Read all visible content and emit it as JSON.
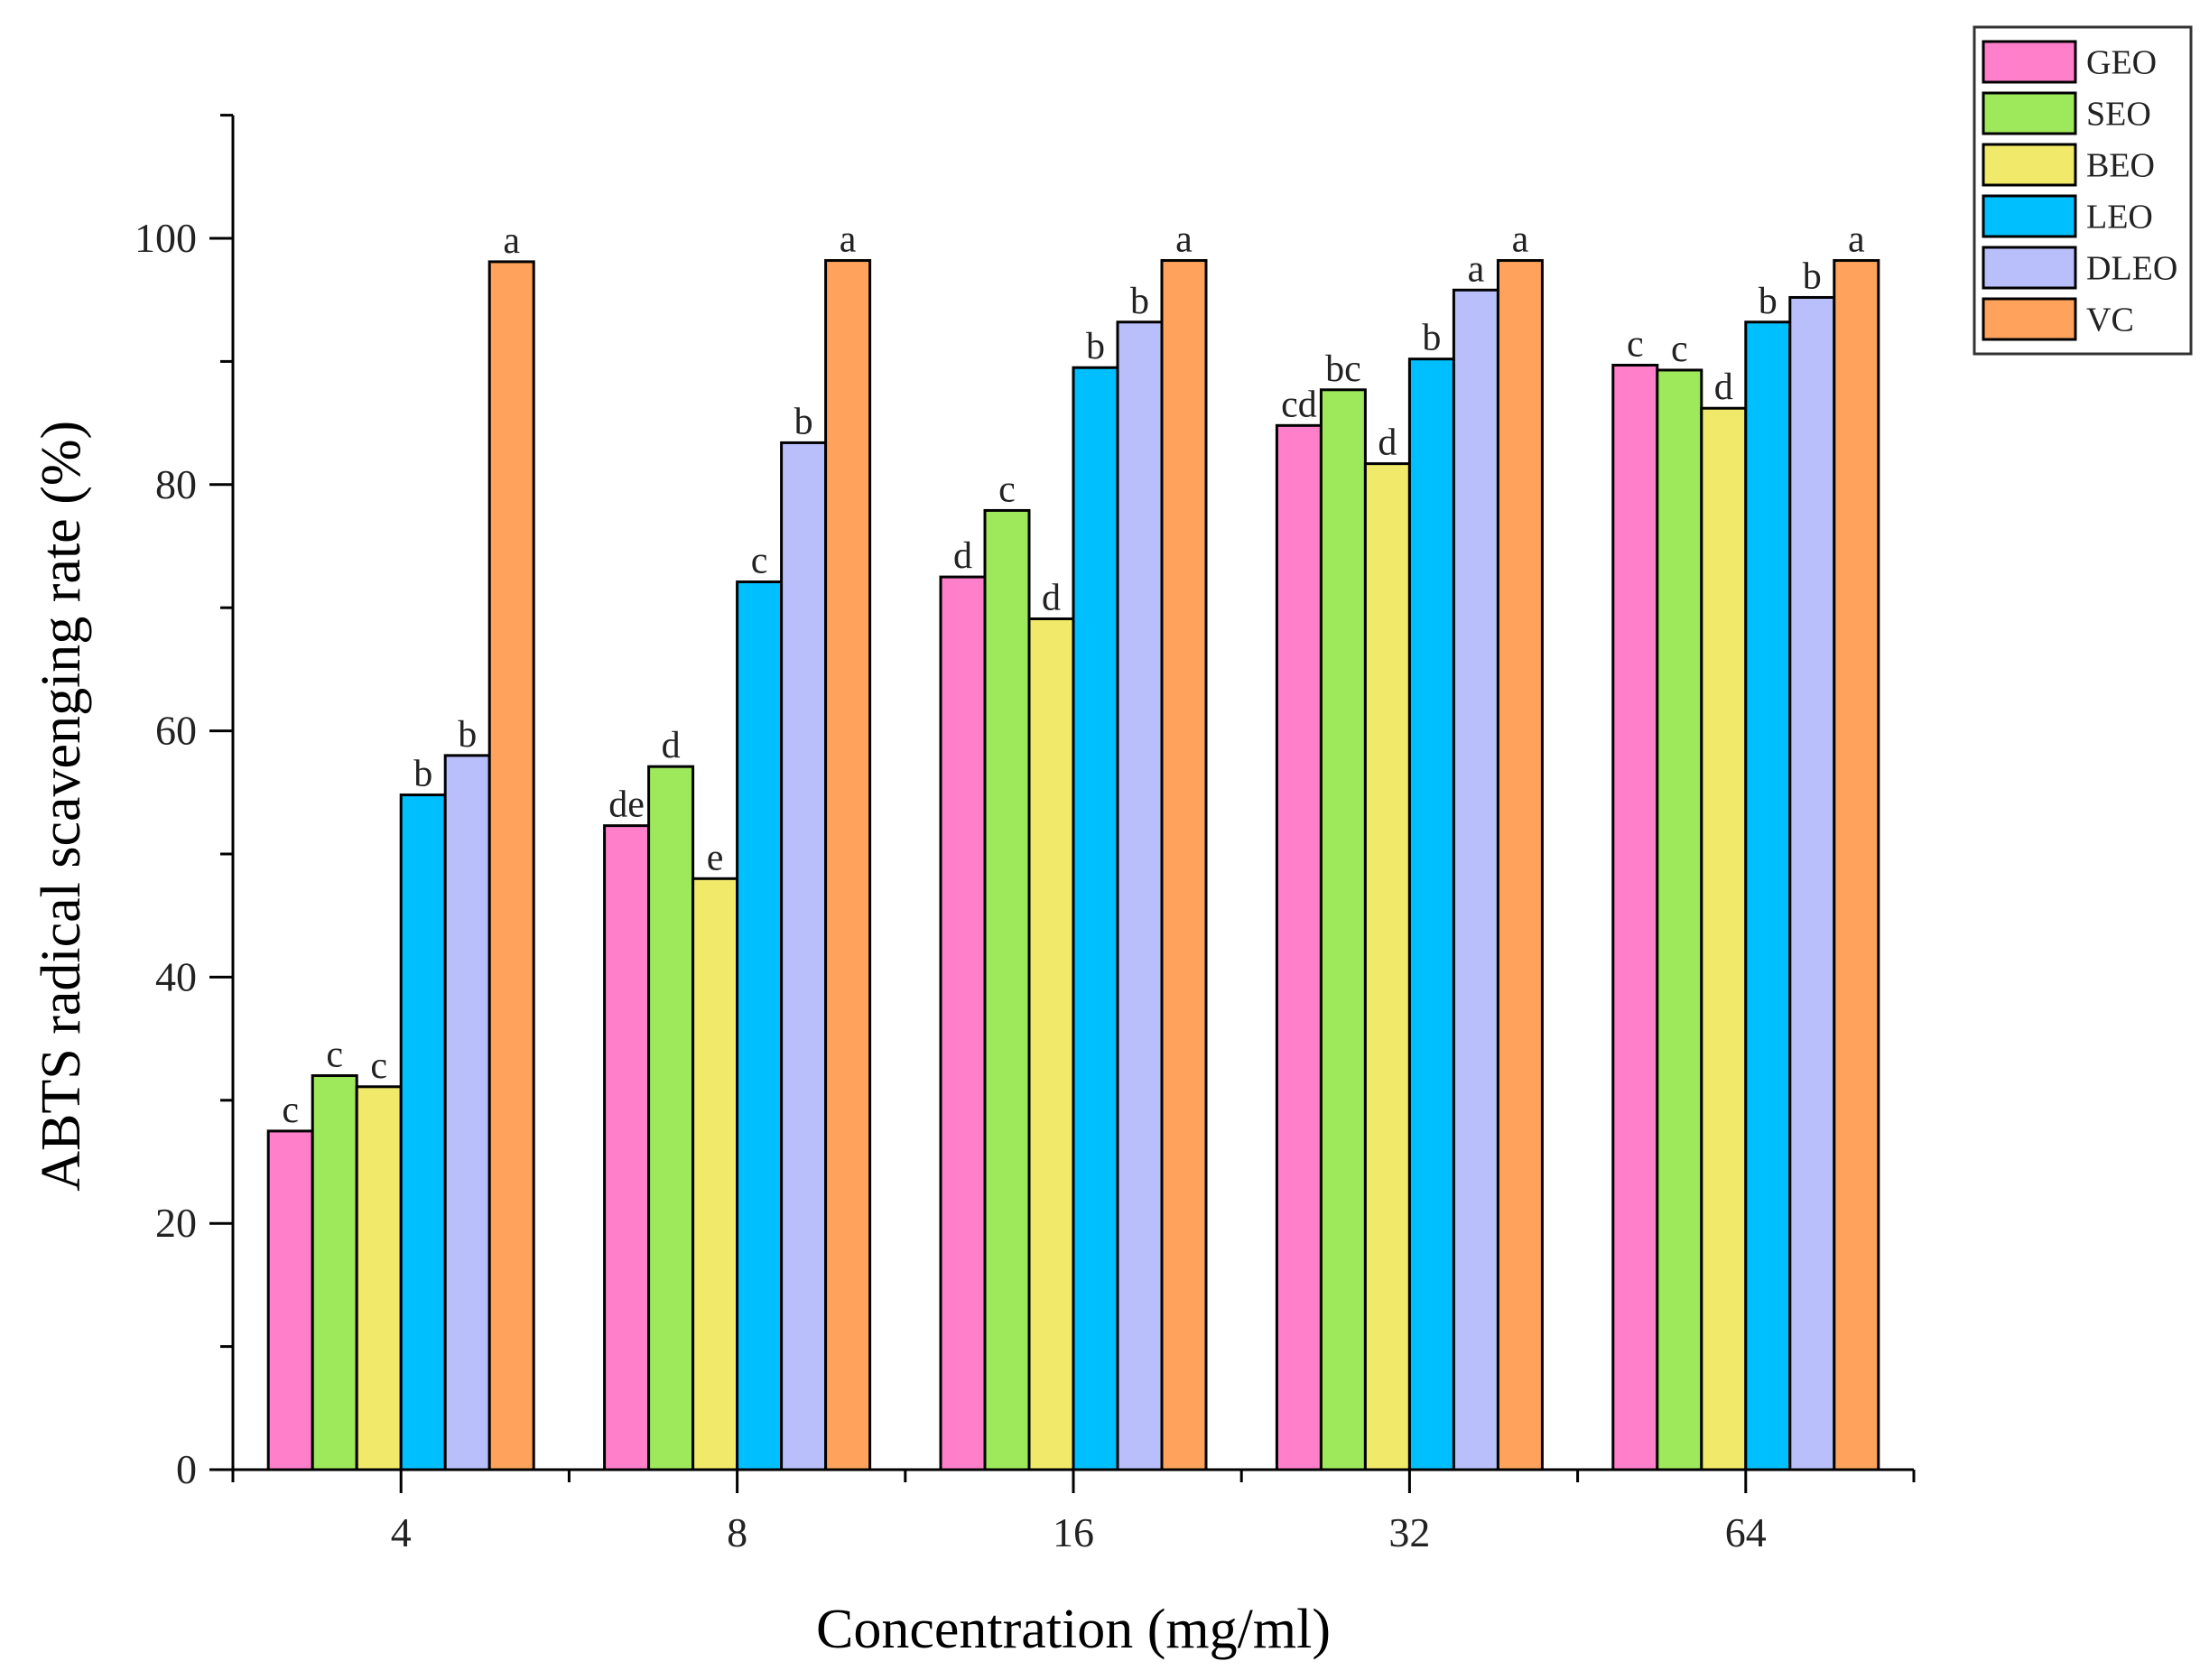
{
  "chart_data": {
    "type": "bar",
    "title": "",
    "xlabel": "Concentration (mg/ml)",
    "ylabel": "ABTS radical scavenging rate (%)",
    "ylim": [
      0,
      110
    ],
    "yticks": [
      0,
      20,
      40,
      60,
      80,
      100
    ],
    "categories": [
      "4",
      "8",
      "16",
      "32",
      "64"
    ],
    "legend_position": "top-right",
    "series": [
      {
        "name": "GEO",
        "color": "#ff7fcb",
        "values": [
          27.5,
          52.3,
          72.5,
          84.8,
          89.7
        ],
        "labels": [
          "c",
          "de",
          "d",
          "cd",
          "c"
        ]
      },
      {
        "name": "SEO",
        "color": "#9ee85b",
        "values": [
          32.0,
          57.1,
          77.9,
          87.7,
          89.3
        ],
        "labels": [
          "c",
          "d",
          "c",
          "bc",
          "c"
        ]
      },
      {
        "name": "BEO",
        "color": "#f0e96a",
        "values": [
          31.1,
          48.0,
          69.1,
          81.7,
          86.2
        ],
        "labels": [
          "c",
          "e",
          "d",
          "d",
          "d"
        ]
      },
      {
        "name": "LEO",
        "color": "#00bfff",
        "values": [
          54.8,
          72.1,
          89.5,
          90.2,
          93.2
        ],
        "labels": [
          "b",
          "c",
          "b",
          "b",
          "b"
        ]
      },
      {
        "name": "DLEO",
        "color": "#b8bffa",
        "values": [
          58.0,
          83.4,
          93.2,
          95.8,
          95.2
        ],
        "labels": [
          "b",
          "b",
          "b",
          "a",
          "b"
        ]
      },
      {
        "name": "VC",
        "color": "#ffa35c",
        "values": [
          98.1,
          98.2,
          98.2,
          98.2,
          98.2
        ],
        "labels": [
          "a",
          "a",
          "a",
          "a",
          "a"
        ]
      }
    ]
  }
}
